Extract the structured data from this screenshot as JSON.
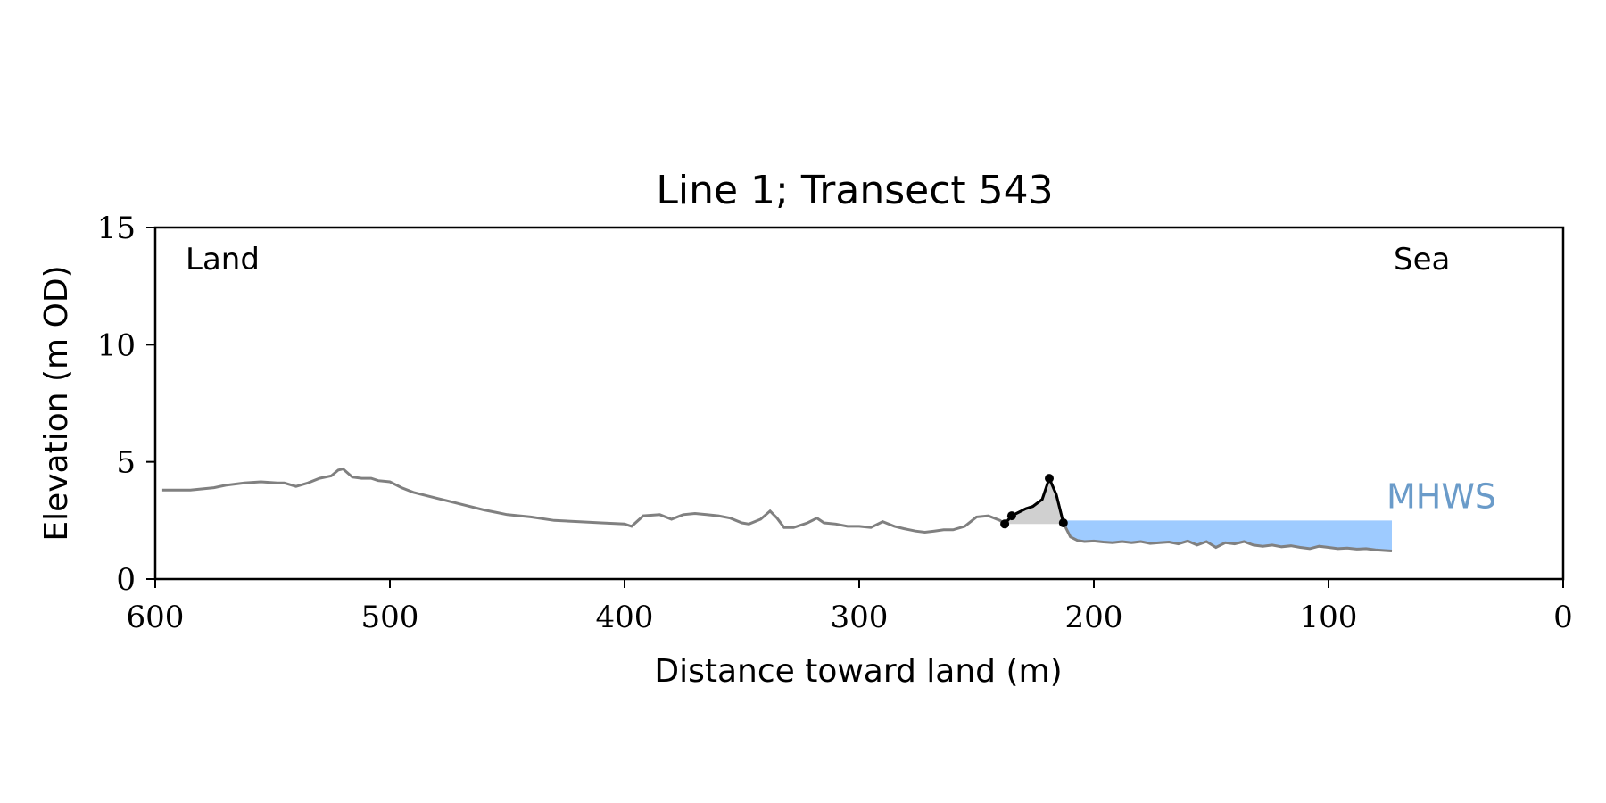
{
  "chart_data": {
    "type": "line",
    "title": "Line 1; Transect 543",
    "xlabel": "Distance toward land (m)",
    "ylabel": "Elevation (m OD)",
    "xlim": [
      600,
      0
    ],
    "ylim": [
      0,
      15
    ],
    "x_ticks": [
      "600",
      "500",
      "400",
      "300",
      "200",
      "100",
      "0"
    ],
    "y_ticks": [
      "0",
      "5",
      "10",
      "15"
    ],
    "annotations": {
      "land": "Land",
      "sea": "Sea",
      "mhws": "MHWS"
    },
    "mhws_level": 2.5,
    "colors": {
      "profile": "#808080",
      "dune": "#000000",
      "dune_fill": "#d0d0d0",
      "water": "#9ecbff",
      "mhws_text": "#6a9bc9"
    },
    "series": [
      {
        "type": "profile",
        "x": [
          597,
          590,
          585,
          575,
          570,
          562,
          555,
          548,
          545,
          540,
          535,
          530,
          525,
          522,
          520,
          516,
          512,
          508,
          505,
          500,
          495,
          490,
          480,
          470,
          460,
          455,
          450,
          440,
          430,
          420,
          410,
          400,
          397,
          392,
          385,
          380,
          375,
          370,
          365,
          360,
          355,
          350,
          347,
          342,
          338,
          335,
          332,
          328,
          322,
          318,
          315,
          310,
          305,
          300,
          295,
          290,
          285,
          281,
          276,
          272,
          268,
          264,
          260,
          255,
          250,
          245,
          240,
          238,
          235,
          232,
          229,
          226,
          222,
          219,
          216,
          213,
          210,
          207,
          204,
          200,
          196,
          192,
          188,
          184,
          180,
          176,
          172,
          168,
          164,
          160,
          156,
          152,
          148,
          144,
          140,
          136,
          132,
          128,
          124,
          120,
          116,
          112,
          108,
          104,
          100,
          96,
          92,
          88,
          84,
          80,
          76,
          73
        ],
        "y": [
          3.8,
          3.8,
          3.8,
          3.9,
          4.0,
          4.1,
          4.15,
          4.1,
          4.1,
          3.95,
          4.1,
          4.3,
          4.4,
          4.65,
          4.7,
          4.35,
          4.3,
          4.3,
          4.2,
          4.15,
          3.9,
          3.7,
          3.45,
          3.2,
          2.95,
          2.85,
          2.75,
          2.65,
          2.5,
          2.45,
          2.4,
          2.35,
          2.25,
          2.7,
          2.75,
          2.55,
          2.75,
          2.8,
          2.75,
          2.7,
          2.6,
          2.4,
          2.35,
          2.55,
          2.9,
          2.6,
          2.2,
          2.2,
          2.4,
          2.6,
          2.4,
          2.35,
          2.25,
          2.25,
          2.2,
          2.45,
          2.25,
          2.15,
          2.05,
          2.0,
          2.05,
          2.1,
          2.1,
          2.25,
          2.65,
          2.7,
          2.5,
          2.35,
          2.7,
          2.85,
          3.0,
          3.1,
          3.4,
          4.3,
          3.6,
          2.4,
          1.8,
          1.65,
          1.6,
          1.62,
          1.58,
          1.55,
          1.6,
          1.55,
          1.6,
          1.52,
          1.55,
          1.58,
          1.5,
          1.62,
          1.45,
          1.6,
          1.35,
          1.55,
          1.5,
          1.6,
          1.45,
          1.4,
          1.45,
          1.38,
          1.42,
          1.35,
          1.3,
          1.4,
          1.35,
          1.3,
          1.32,
          1.28,
          1.3,
          1.25,
          1.22,
          1.2
        ]
      },
      {
        "type": "dune",
        "x": [
          238,
          235,
          229,
          226,
          222,
          219,
          216,
          213
        ],
        "y": [
          2.35,
          2.7,
          3.0,
          3.1,
          3.4,
          4.3,
          3.6,
          2.4
        ]
      },
      {
        "type": "dune_markers",
        "x": [
          238,
          235,
          219,
          213
        ],
        "y": [
          2.35,
          2.7,
          4.3,
          2.4
        ]
      }
    ]
  }
}
